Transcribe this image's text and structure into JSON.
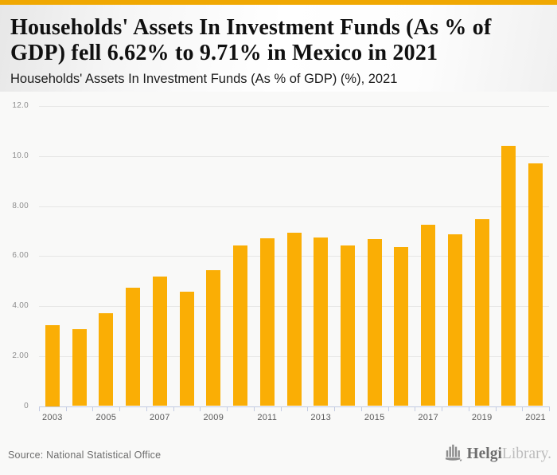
{
  "accent": {
    "top_border_color": "#F0A802",
    "bar_color": "#FAAE05",
    "axis_color": "#c3cbe2",
    "gridline_color": "#e7e7e6"
  },
  "header": {
    "title_line1": "Households' Assets In Investment Funds (As % of",
    "title_line2": "GDP) fell 6.62% to 9.71% in Mexico in 2021",
    "subtitle": "Households' Assets In Investment Funds (As % of GDP) (%), 2021"
  },
  "chart_data": {
    "type": "bar",
    "title": "Households' Assets In Investment Funds (As % of GDP) fell 6.62% to 9.71% in Mexico in 2021",
    "subtitle": "Households' Assets In Investment Funds (As % of GDP) (%), 2021",
    "categories": [
      "2003",
      "2004",
      "2005",
      "2006",
      "2007",
      "2008",
      "2009",
      "2010",
      "2011",
      "2012",
      "2013",
      "2014",
      "2015",
      "2016",
      "2017",
      "2018",
      "2019",
      "2020",
      "2021"
    ],
    "values": [
      3.25,
      3.07,
      3.72,
      4.74,
      5.18,
      4.57,
      5.45,
      6.41,
      6.71,
      6.93,
      6.74,
      6.43,
      6.68,
      6.36,
      7.24,
      6.87,
      7.48,
      10.4,
      9.71
    ],
    "xlabel": "",
    "ylabel": "",
    "ylim": [
      0,
      12.55
    ],
    "yticks": {
      "values": [
        0,
        2,
        4,
        6,
        8,
        10,
        12
      ],
      "labels": [
        "0",
        "2.00",
        "4.00",
        "6.00",
        "8.00",
        "10.0",
        "12.0"
      ]
    },
    "xtick_labeled_years": [
      "2003",
      "2005",
      "2007",
      "2009",
      "2011",
      "2013",
      "2015",
      "2017",
      "2019",
      "2021"
    ],
    "grid": true,
    "legend": "none",
    "bar_color": "#FAAE05"
  },
  "footer": {
    "source": "Source: National Statistical Office",
    "logo_part1": "Helgi",
    "logo_part2": "Library."
  }
}
